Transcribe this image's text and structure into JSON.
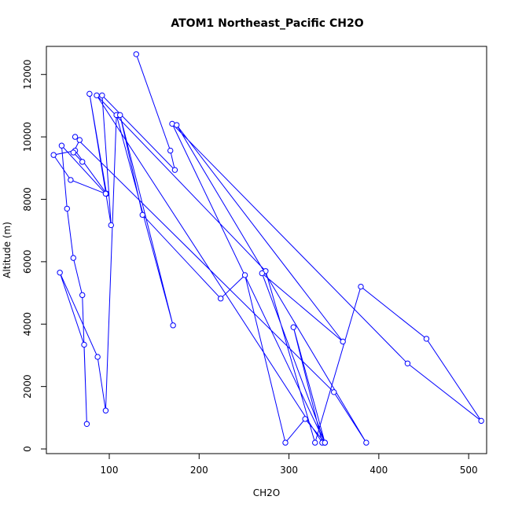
{
  "chart_data": {
    "type": "line",
    "title": "ATOM1 Northeast_Pacific CH2O",
    "xlabel": "CH2O",
    "ylabel": "Altitude (m)",
    "xlim": [
      30,
      520
    ],
    "ylim": [
      -150,
      12900
    ],
    "x_ticks": [
      100,
      200,
      300,
      400,
      500
    ],
    "y_ticks": [
      0,
      2000,
      4000,
      6000,
      8000,
      10000,
      12000
    ],
    "line_color": "#0000ff",
    "marker": "open-circle",
    "grid": false,
    "legend": "none",
    "series": [
      {
        "x": [
          130,
          168,
          173,
          92,
          102,
          78,
          97,
          62,
          38,
          57,
          96,
          47,
          53,
          60,
          70,
          75,
          72,
          45,
          87,
          96,
          108,
          171,
          112,
          137,
          224,
          251,
          296,
          318,
          340,
          305,
          337,
          86,
          274,
          329,
          380,
          453,
          514,
          432,
          170,
          340,
          270,
          360,
          175,
          386,
          350,
          62,
          67,
          60,
          70
        ],
        "y": [
          12650,
          9560,
          8940,
          11330,
          7170,
          11380,
          8180,
          9560,
          9420,
          8620,
          8180,
          9720,
          7700,
          6120,
          4930,
          800,
          3340,
          5650,
          2950,
          1230,
          10700,
          3960,
          10700,
          7500,
          4820,
          5570,
          200,
          960,
          200,
          3900,
          200,
          11330,
          5700,
          200,
          5200,
          3530,
          900,
          2740,
          10420,
          200,
          5630,
          3440,
          10380,
          200,
          1820,
          10000,
          9900,
          9500,
          9200
        ]
      }
    ]
  }
}
